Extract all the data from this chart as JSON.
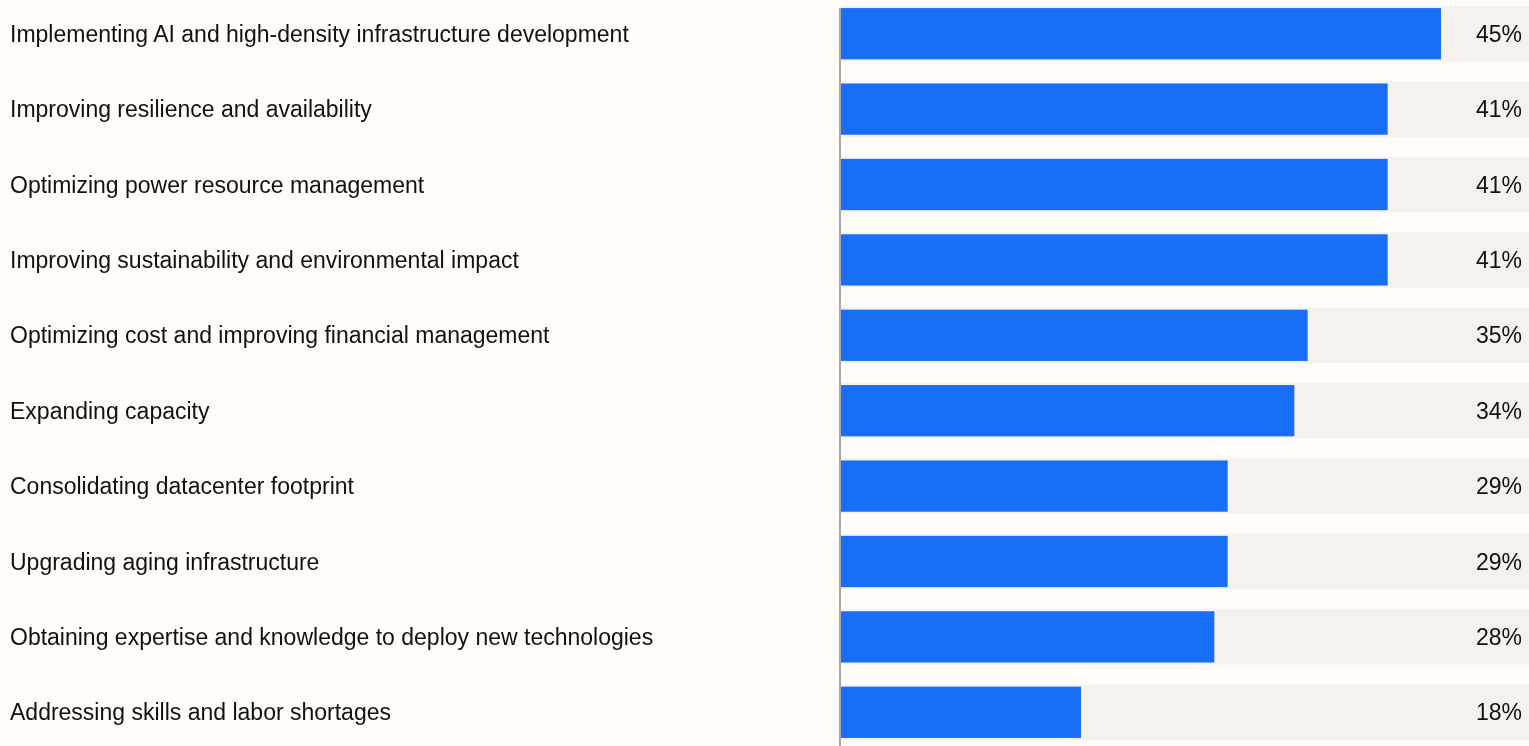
{
  "chart_data": {
    "type": "bar",
    "orientation": "horizontal",
    "categories": [
      "Implementing AI and high-density infrastructure development",
      "Improving resilience and availability",
      "Optimizing power resource management",
      "Improving sustainability and environmental impact",
      "Optimizing cost and improving financial management",
      "Expanding capacity",
      "Consolidating datacenter footprint",
      "Upgrading aging infrastructure",
      "Obtaining expertise and knowledge to deploy new technologies",
      "Addressing skills and labor shortages"
    ],
    "values": [
      45,
      41,
      41,
      41,
      35,
      34,
      29,
      29,
      28,
      18
    ],
    "value_labels": [
      "45%",
      "41%",
      "41%",
      "41%",
      "35%",
      "34%",
      "29%",
      "29%",
      "28%",
      "18%"
    ],
    "color": "#186ff5"
  }
}
